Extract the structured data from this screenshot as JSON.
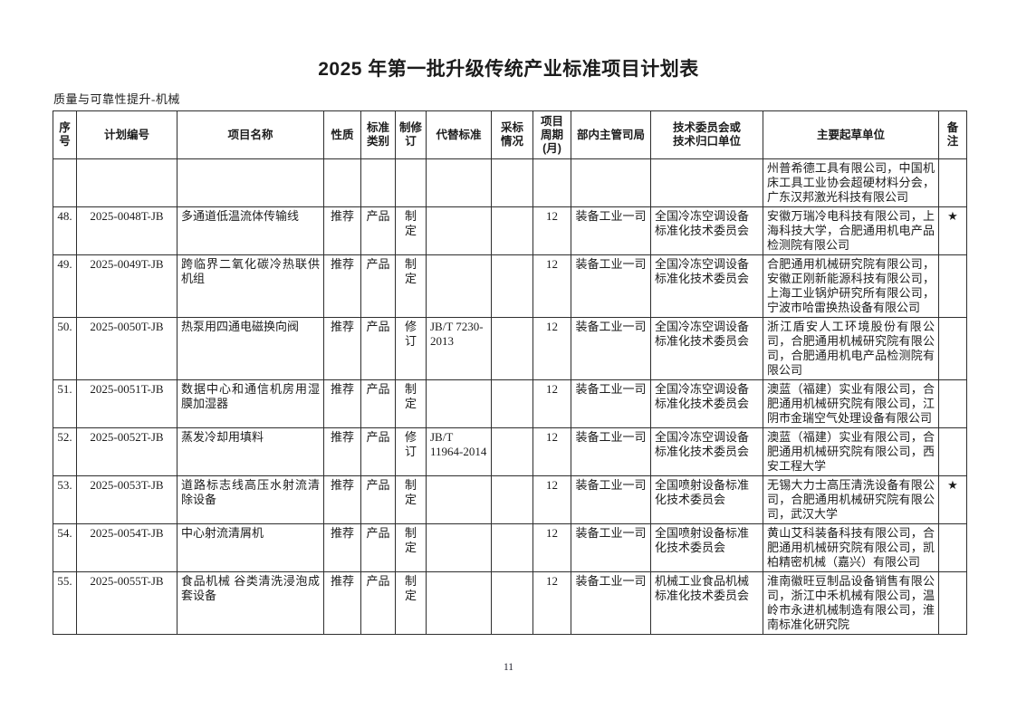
{
  "document": {
    "title": "2025 年第一批升级传统产业标准项目计划表",
    "section_label": "质量与可靠性提升-机械",
    "page_number": "11"
  },
  "table": {
    "headers": [
      "序\n号",
      "计划编号",
      "项目名称",
      "性质",
      "标准\n类别",
      "制修\n订",
      "代替标准",
      "采标\n情况",
      "项目\n周期\n(月)",
      "部内主管司局",
      "技术委员会或\n技术归口单位",
      "主要起草单位",
      "备\n注"
    ],
    "rows": [
      {
        "seq": "",
        "plan_no": "",
        "name": "",
        "nature": "",
        "category": "",
        "revision": "",
        "replaced": "",
        "adoption": "",
        "period": "",
        "department": "",
        "committee": "",
        "drafters": "州普希德工具有限公司，中国机床工具工业协会超硬材料分会，广东汉邦激光科技有限公司",
        "remark": ""
      },
      {
        "seq": "48.",
        "plan_no": "2025-0048T-JB",
        "name": "多通道低温流体传输线",
        "nature": "推荐",
        "category": "产品",
        "revision": "制定",
        "replaced": "",
        "adoption": "",
        "period": "12",
        "department": "装备工业一司",
        "committee": "全国冷冻空调设备标准化技术委员会",
        "drafters": "安徽万瑞冷电科技有限公司，上海科技大学，合肥通用机电产品检测院有限公司",
        "remark": "★"
      },
      {
        "seq": "49.",
        "plan_no": "2025-0049T-JB",
        "name": "跨临界二氧化碳冷热联供机组",
        "nature": "推荐",
        "category": "产品",
        "revision": "制定",
        "replaced": "",
        "adoption": "",
        "period": "12",
        "department": "装备工业一司",
        "committee": "全国冷冻空调设备标准化技术委员会",
        "drafters": "合肥通用机械研究院有限公司，安徽正刚新能源科技有限公司，上海工业锅炉研究所有限公司，宁波市哈雷换热设备有限公司",
        "remark": ""
      },
      {
        "seq": "50.",
        "plan_no": "2025-0050T-JB",
        "name": "热泵用四通电磁换向阀",
        "nature": "推荐",
        "category": "产品",
        "revision": "修订",
        "replaced": "JB/T 7230-2013",
        "adoption": "",
        "period": "12",
        "department": "装备工业一司",
        "committee": "全国冷冻空调设备标准化技术委员会",
        "drafters": "浙江盾安人工环境股份有限公司，合肥通用机械研究院有限公司，合肥通用机电产品检测院有限公司",
        "remark": ""
      },
      {
        "seq": "51.",
        "plan_no": "2025-0051T-JB",
        "name": "数据中心和通信机房用湿膜加湿器",
        "nature": "推荐",
        "category": "产品",
        "revision": "制定",
        "replaced": "",
        "adoption": "",
        "period": "12",
        "department": "装备工业一司",
        "committee": "全国冷冻空调设备标准化技术委员会",
        "drafters": "澳蓝（福建）实业有限公司，合肥通用机械研究院有限公司，江阴市金瑞空气处理设备有限公司",
        "remark": ""
      },
      {
        "seq": "52.",
        "plan_no": "2025-0052T-JB",
        "name": "蒸发冷却用填料",
        "nature": "推荐",
        "category": "产品",
        "revision": "修订",
        "replaced": "JB/T 11964-2014",
        "adoption": "",
        "period": "12",
        "department": "装备工业一司",
        "committee": "全国冷冻空调设备标准化技术委员会",
        "drafters": "澳蓝（福建）实业有限公司，合肥通用机械研究院有限公司，西安工程大学",
        "remark": ""
      },
      {
        "seq": "53.",
        "plan_no": "2025-0053T-JB",
        "name": "道路标志线高压水射流清除设备",
        "nature": "推荐",
        "category": "产品",
        "revision": "制定",
        "replaced": "",
        "adoption": "",
        "period": "12",
        "department": "装备工业一司",
        "committee": "全国喷射设备标准化技术委员会",
        "drafters": "无锡大力士高压清洗设备有限公司，合肥通用机械研究院有限公司，武汉大学",
        "remark": "★"
      },
      {
        "seq": "54.",
        "plan_no": "2025-0054T-JB",
        "name": "中心射流清屑机",
        "nature": "推荐",
        "category": "产品",
        "revision": "制定",
        "replaced": "",
        "adoption": "",
        "period": "12",
        "department": "装备工业一司",
        "committee": "全国喷射设备标准化技术委员会",
        "drafters": "黄山艾科装备科技有限公司，合肥通用机械研究院有限公司，凯柏精密机械（嘉兴）有限公司",
        "remark": ""
      },
      {
        "seq": "55.",
        "plan_no": "2025-0055T-JB",
        "name": "食品机械 谷类清洗浸泡成套设备",
        "nature": "推荐",
        "category": "产品",
        "revision": "制定",
        "replaced": "",
        "adoption": "",
        "period": "12",
        "department": "装备工业一司",
        "committee": "机械工业食品机械标准化技术委员会",
        "drafters": "淮南徽旺豆制品设备销售有限公司，浙江中禾机械有限公司，温岭市永进机械制造有限公司，淮南标准化研究院",
        "remark": ""
      }
    ]
  }
}
